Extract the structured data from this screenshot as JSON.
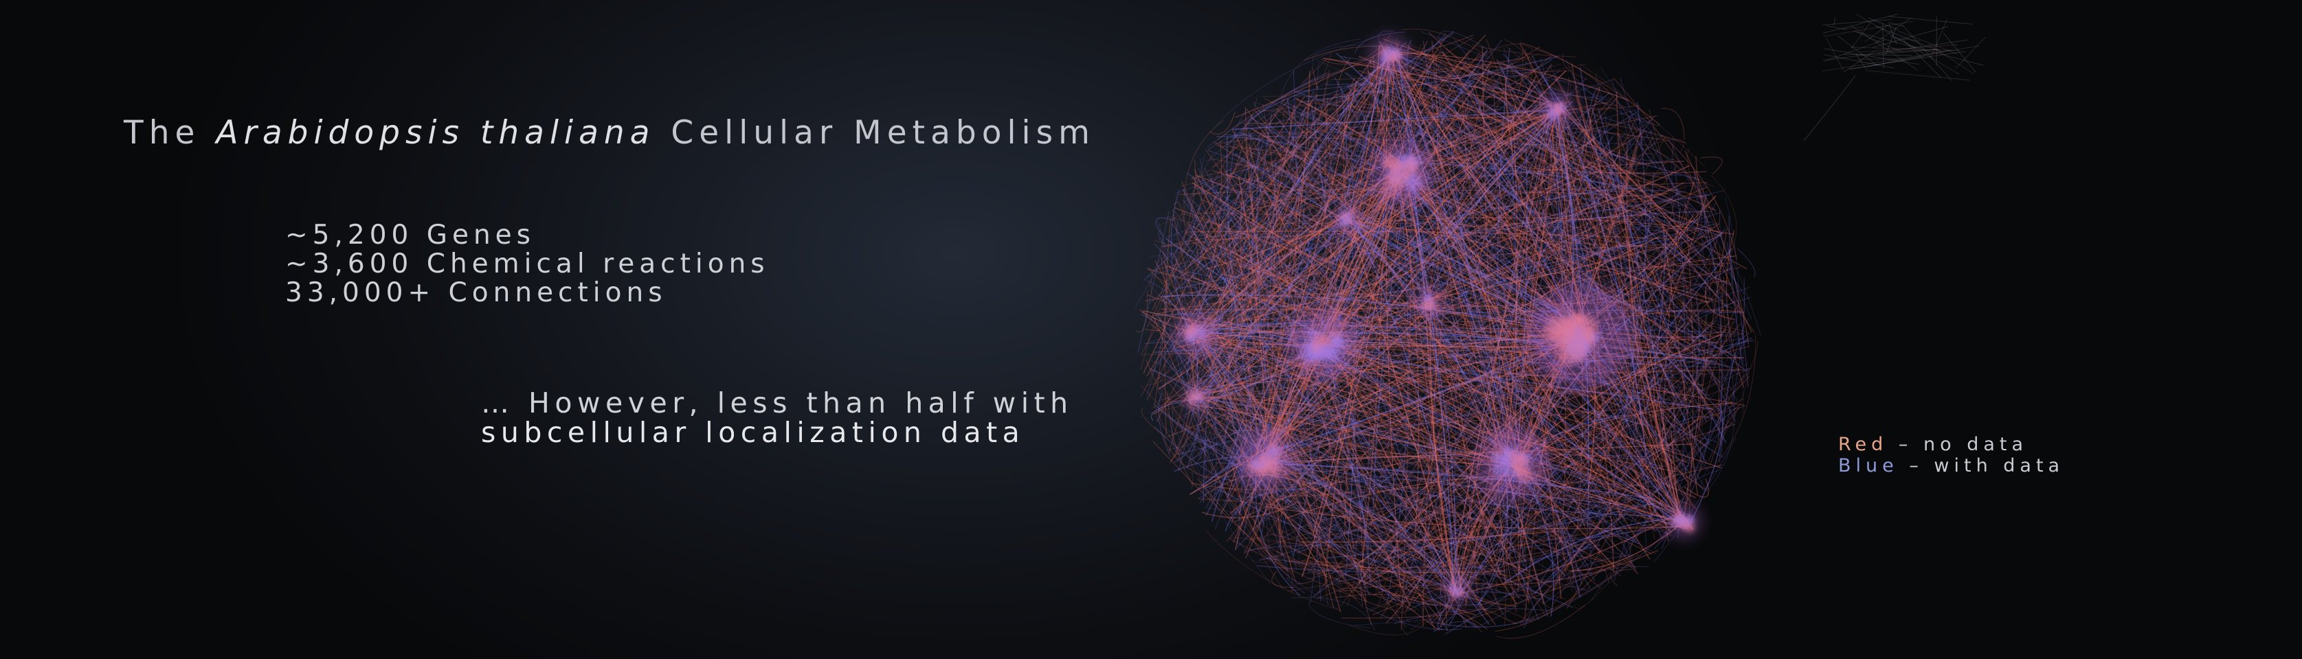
{
  "title": {
    "prefix": "The",
    "species": "Arabidopsis thaliana",
    "suffix": "Cellular Metabolism"
  },
  "stats": [
    "~5,200 Genes",
    "~3,600 Chemical reactions",
    "33,000+ Connections"
  ],
  "caveat": {
    "line1": "… However, less than half with",
    "line2": "subcellular localization data"
  },
  "legend": {
    "red_word": "Red",
    "red_rest": " – no data",
    "blue_word": "Blue",
    "blue_rest": " – with data"
  },
  "colors": {
    "no_data": "#e06a62",
    "with_data": "#7a6fe0",
    "background": "#08090b"
  }
}
